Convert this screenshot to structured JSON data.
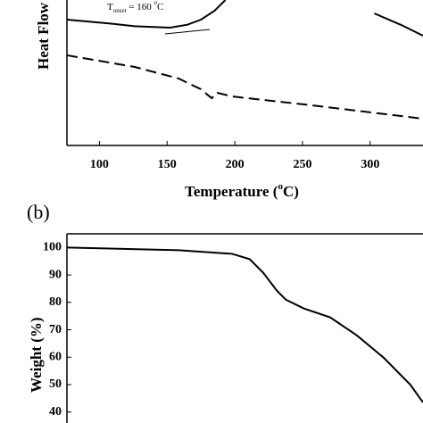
{
  "chart_data": [
    {
      "type": "line",
      "ylabel": "Heat Flow",
      "xlabel": [
        "Temperature (",
        "o",
        "C)"
      ],
      "annotation": [
        "T",
        "onset",
        " = 160 ",
        "o",
        "C"
      ],
      "xlim": [
        76,
        339
      ],
      "xticks": [
        100,
        150,
        200,
        250,
        300
      ],
      "ylim": [
        0,
        100
      ],
      "yticks": [],
      "series": [
        {
          "color": "#000000",
          "dash": false,
          "x": [
            76,
            106,
            126,
            152,
            165,
            175,
            185,
            193,
            283.6,
            303,
            323,
            339
          ],
          "values": [
            86.5,
            84,
            82,
            81,
            83,
            86.5,
            92.6,
            100,
            null,
            90.8,
            82.8,
            75.5
          ]
        },
        {
          "color": "#000000",
          "dash": true,
          "x": [
            76,
            126,
            158.6,
            168,
            175,
            179.6,
            183,
            187,
            198,
            257,
            339
          ],
          "values": [
            62,
            54,
            46,
            41.7,
            38.7,
            35,
            32.5,
            36.2,
            33.7,
            27.6,
            18.4
          ]
        }
      ]
    },
    {
      "type": "line",
      "panel_label": "(b)",
      "ylabel": "Weight (%)",
      "xlim": [
        76,
        339
      ],
      "ylim": [
        36,
        105
      ],
      "yticks": [
        40,
        50,
        60,
        70,
        80,
        90,
        100
      ],
      "series": [
        {
          "color": "#000000",
          "dash": false,
          "x": [
            76,
            158.6,
            198,
            211,
            221,
            231,
            237.6,
            250.8,
            270.5,
            290,
            310,
            329.6,
            339
          ],
          "values": [
            100,
            99,
            97.7,
            95.75,
            90.8,
            84.3,
            81,
            77.8,
            74.5,
            68,
            59.8,
            50,
            43.5
          ]
        }
      ]
    }
  ]
}
